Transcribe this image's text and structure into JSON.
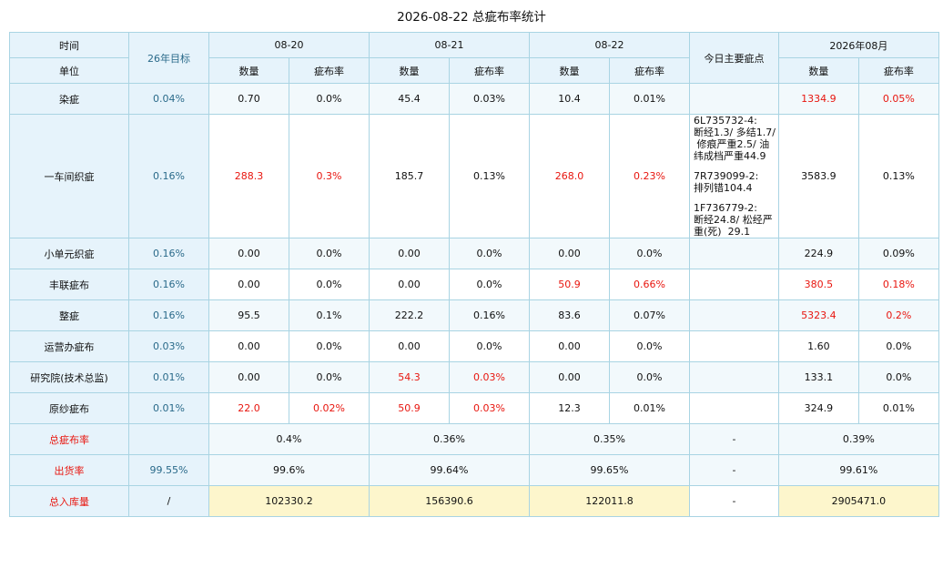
{
  "title": "2026-08-22 总疵布率统计",
  "header": {
    "row1_label": "时间",
    "row2_label": "单位",
    "target_label": "26年目标",
    "dates": [
      "08-20",
      "08-21",
      "08-22"
    ],
    "notes_label": "今日主要疵点",
    "month_label": "2026年08月",
    "qty_label": "数量",
    "rate_label": "疵布率"
  },
  "rows": [
    {
      "name": "染疵",
      "target": "0.04%",
      "cells": [
        {
          "qty": "0.70",
          "rate": "0.0%"
        },
        {
          "qty": "45.4",
          "rate": "0.03%"
        },
        {
          "qty": "10.4",
          "rate": "0.01%"
        }
      ],
      "notes": [],
      "month": {
        "qty": "1334.9",
        "rate": "0.05%"
      }
    },
    {
      "name": "一车间织疵",
      "target": "0.16%",
      "cells": [
        {
          "qty": "288.3",
          "rate": "0.3%"
        },
        {
          "qty": "185.7",
          "rate": "0.13%"
        },
        {
          "qty": "268.0",
          "rate": "0.23%"
        }
      ],
      "notes": [
        [
          "6L735732-4:",
          "断经1.3/ 多结1.7/",
          " 修痕严重2.5/ 油",
          "纬成档严重44.9"
        ],
        [
          "7R739099-2:",
          "排列错104.4"
        ],
        [
          "1F736779-2:",
          "断经24.8/ 松经严",
          "重(死)  29.1"
        ]
      ],
      "month": {
        "qty": "3583.9",
        "rate": "0.13%"
      }
    },
    {
      "name": "小单元织疵",
      "target": "0.16%",
      "cells": [
        {
          "qty": "0.00",
          "rate": "0.0%"
        },
        {
          "qty": "0.00",
          "rate": "0.0%"
        },
        {
          "qty": "0.00",
          "rate": "0.0%"
        }
      ],
      "notes": [],
      "month": {
        "qty": "224.9",
        "rate": "0.09%"
      }
    },
    {
      "name": "丰联疵布",
      "target": "0.16%",
      "cells": [
        {
          "qty": "0.00",
          "rate": "0.0%"
        },
        {
          "qty": "0.00",
          "rate": "0.0%"
        },
        {
          "qty": "50.9",
          "rate": "0.66%"
        }
      ],
      "notes": [],
      "month": {
        "qty": "380.5",
        "rate": "0.18%"
      }
    },
    {
      "name": "整疵",
      "target": "0.16%",
      "cells": [
        {
          "qty": "95.5",
          "rate": "0.1%"
        },
        {
          "qty": "222.2",
          "rate": "0.16%"
        },
        {
          "qty": "83.6",
          "rate": "0.07%"
        }
      ],
      "notes": [],
      "month": {
        "qty": "5323.4",
        "rate": "0.2%"
      }
    },
    {
      "name": "运营办疵布",
      "target": "0.03%",
      "cells": [
        {
          "qty": "0.00",
          "rate": "0.0%"
        },
        {
          "qty": "0.00",
          "rate": "0.0%"
        },
        {
          "qty": "0.00",
          "rate": "0.0%"
        }
      ],
      "notes": [],
      "month": {
        "qty": "1.60",
        "rate": "0.0%"
      }
    },
    {
      "name": "研究院(技术总监)",
      "target": "0.01%",
      "cells": [
        {
          "qty": "0.00",
          "rate": "0.0%"
        },
        {
          "qty": "54.3",
          "rate": "0.03%"
        },
        {
          "qty": "0.00",
          "rate": "0.0%"
        }
      ],
      "notes": [],
      "month": {
        "qty": "133.1",
        "rate": "0.0%"
      }
    },
    {
      "name": "原纱疵布",
      "target": "0.01%",
      "cells": [
        {
          "qty": "22.0",
          "rate": "0.02%"
        },
        {
          "qty": "50.9",
          "rate": "0.03%"
        },
        {
          "qty": "12.3",
          "rate": "0.01%"
        }
      ],
      "notes": [],
      "month": {
        "qty": "324.9",
        "rate": "0.01%"
      }
    }
  ],
  "summary": [
    {
      "name": "总疵布率",
      "target": "",
      "values": [
        "0.4%",
        "0.36%",
        "0.35%"
      ],
      "notes": "-",
      "month": "0.39%"
    },
    {
      "name": "出货率",
      "target": "99.55%",
      "values": [
        "99.6%",
        "99.64%",
        "99.65%"
      ],
      "notes": "-",
      "month": "99.61%"
    },
    {
      "name": "总入库量",
      "target": "/",
      "values": [
        "102330.2",
        "156390.6",
        "122011.8"
      ],
      "notes": "-",
      "month": "2905471.0"
    }
  ],
  "colors": {
    "header_bg": "#e6f3fb",
    "border": "#a9d4e3",
    "alert_text": "#e8160f",
    "target_text": "#2a6a8a",
    "inventory_bg": "#fdf6cc"
  }
}
